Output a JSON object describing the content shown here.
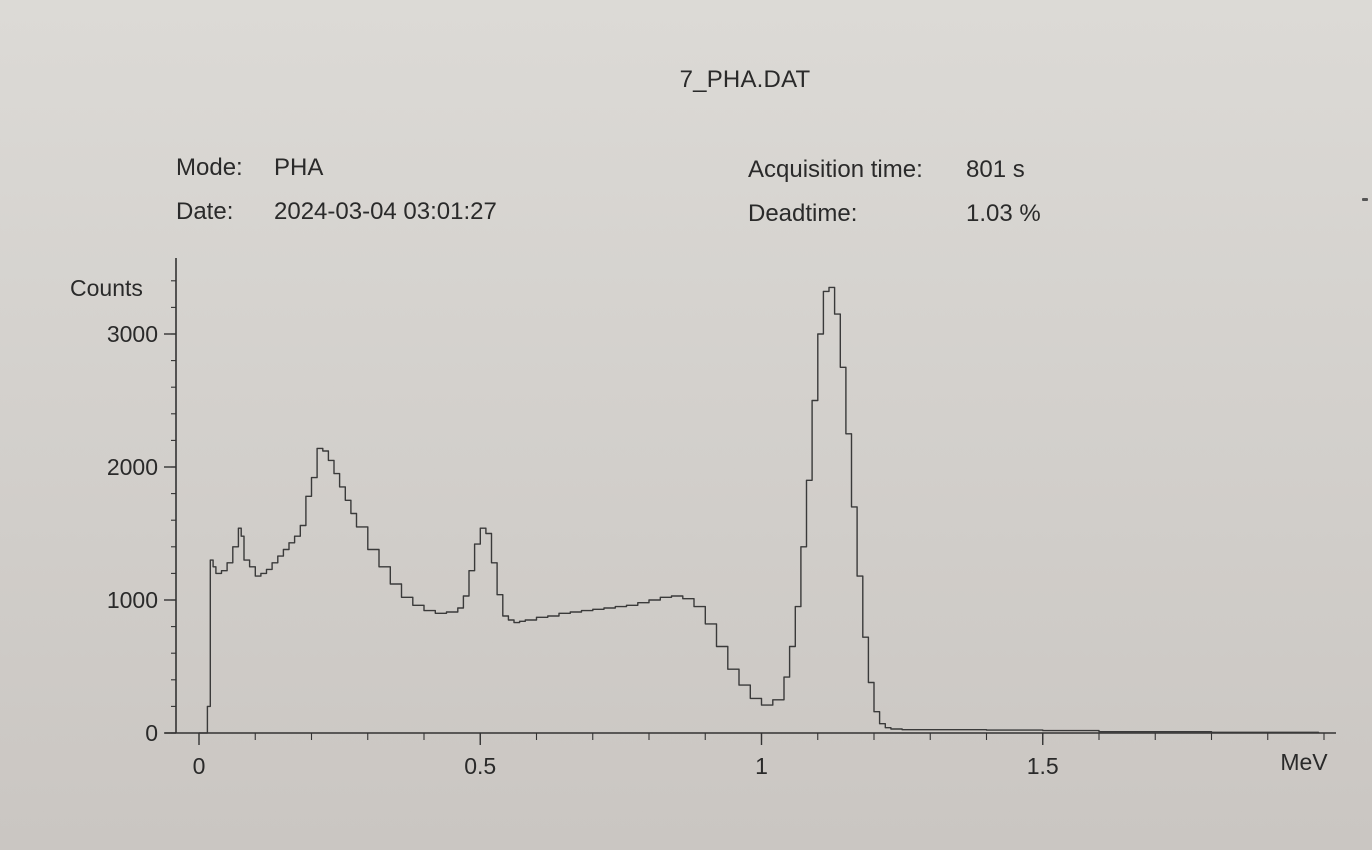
{
  "header": {
    "title": "7_PHA.DAT",
    "mode_label": "Mode:",
    "mode_value": "PHA",
    "date_label": "Date:",
    "date_value": "2024-03-04 03:01:27",
    "acq_label": "Acquisition time:",
    "acq_value": "801 s",
    "dead_label": "Deadtime:",
    "dead_value": "1.03 %"
  },
  "chart_data": {
    "type": "line",
    "title": "7_PHA.DAT",
    "xlabel": "MeV",
    "ylabel": "Counts",
    "xlim": [
      0,
      2.0
    ],
    "ylim": [
      0,
      3400
    ],
    "x_ticks": [
      0,
      0.5,
      1,
      1.5
    ],
    "x_tick_labels": [
      "0",
      "0.5",
      "1",
      "1.5"
    ],
    "y_ticks": [
      0,
      1000,
      2000,
      3000
    ],
    "y_tick_labels": [
      "0",
      "1000",
      "2000",
      "3000"
    ],
    "grid": false,
    "line_color": "#3a3a3a",
    "series": [
      {
        "x": [
          0.0,
          0.01,
          0.015,
          0.02,
          0.025,
          0.03,
          0.04,
          0.05,
          0.06,
          0.07,
          0.075,
          0.08,
          0.09,
          0.1,
          0.11,
          0.12,
          0.13,
          0.14,
          0.15,
          0.16,
          0.17,
          0.18,
          0.19,
          0.2,
          0.21,
          0.22,
          0.23,
          0.24,
          0.25,
          0.26,
          0.27,
          0.28,
          0.3,
          0.32,
          0.34,
          0.36,
          0.38,
          0.4,
          0.42,
          0.44,
          0.46,
          0.47,
          0.48,
          0.49,
          0.5,
          0.51,
          0.52,
          0.53,
          0.54,
          0.55,
          0.56,
          0.57,
          0.58,
          0.6,
          0.62,
          0.64,
          0.66,
          0.68,
          0.7,
          0.72,
          0.74,
          0.76,
          0.78,
          0.8,
          0.82,
          0.84,
          0.86,
          0.88,
          0.9,
          0.92,
          0.94,
          0.96,
          0.98,
          1.0,
          1.02,
          1.04,
          1.05,
          1.06,
          1.07,
          1.08,
          1.09,
          1.1,
          1.11,
          1.12,
          1.13,
          1.14,
          1.15,
          1.16,
          1.17,
          1.18,
          1.19,
          1.2,
          1.21,
          1.22,
          1.23,
          1.25,
          1.3,
          1.4,
          1.5,
          1.6,
          1.8,
          1.99
        ],
        "y": [
          0,
          0,
          200,
          1300,
          1250,
          1200,
          1220,
          1280,
          1400,
          1540,
          1480,
          1300,
          1250,
          1180,
          1200,
          1230,
          1280,
          1330,
          1380,
          1430,
          1480,
          1560,
          1780,
          1920,
          2140,
          2120,
          2050,
          1950,
          1850,
          1750,
          1650,
          1550,
          1380,
          1250,
          1120,
          1020,
          960,
          920,
          900,
          910,
          940,
          1030,
          1220,
          1420,
          1540,
          1500,
          1280,
          1040,
          880,
          850,
          830,
          840,
          850,
          870,
          880,
          900,
          910,
          920,
          930,
          940,
          950,
          960,
          980,
          1000,
          1020,
          1030,
          1010,
          950,
          820,
          650,
          480,
          360,
          260,
          210,
          250,
          420,
          650,
          950,
          1400,
          1900,
          2500,
          3000,
          3320,
          3350,
          3150,
          2750,
          2250,
          1700,
          1180,
          720,
          380,
          160,
          70,
          40,
          30,
          25,
          25,
          22,
          18,
          10,
          5,
          0
        ]
      }
    ]
  }
}
